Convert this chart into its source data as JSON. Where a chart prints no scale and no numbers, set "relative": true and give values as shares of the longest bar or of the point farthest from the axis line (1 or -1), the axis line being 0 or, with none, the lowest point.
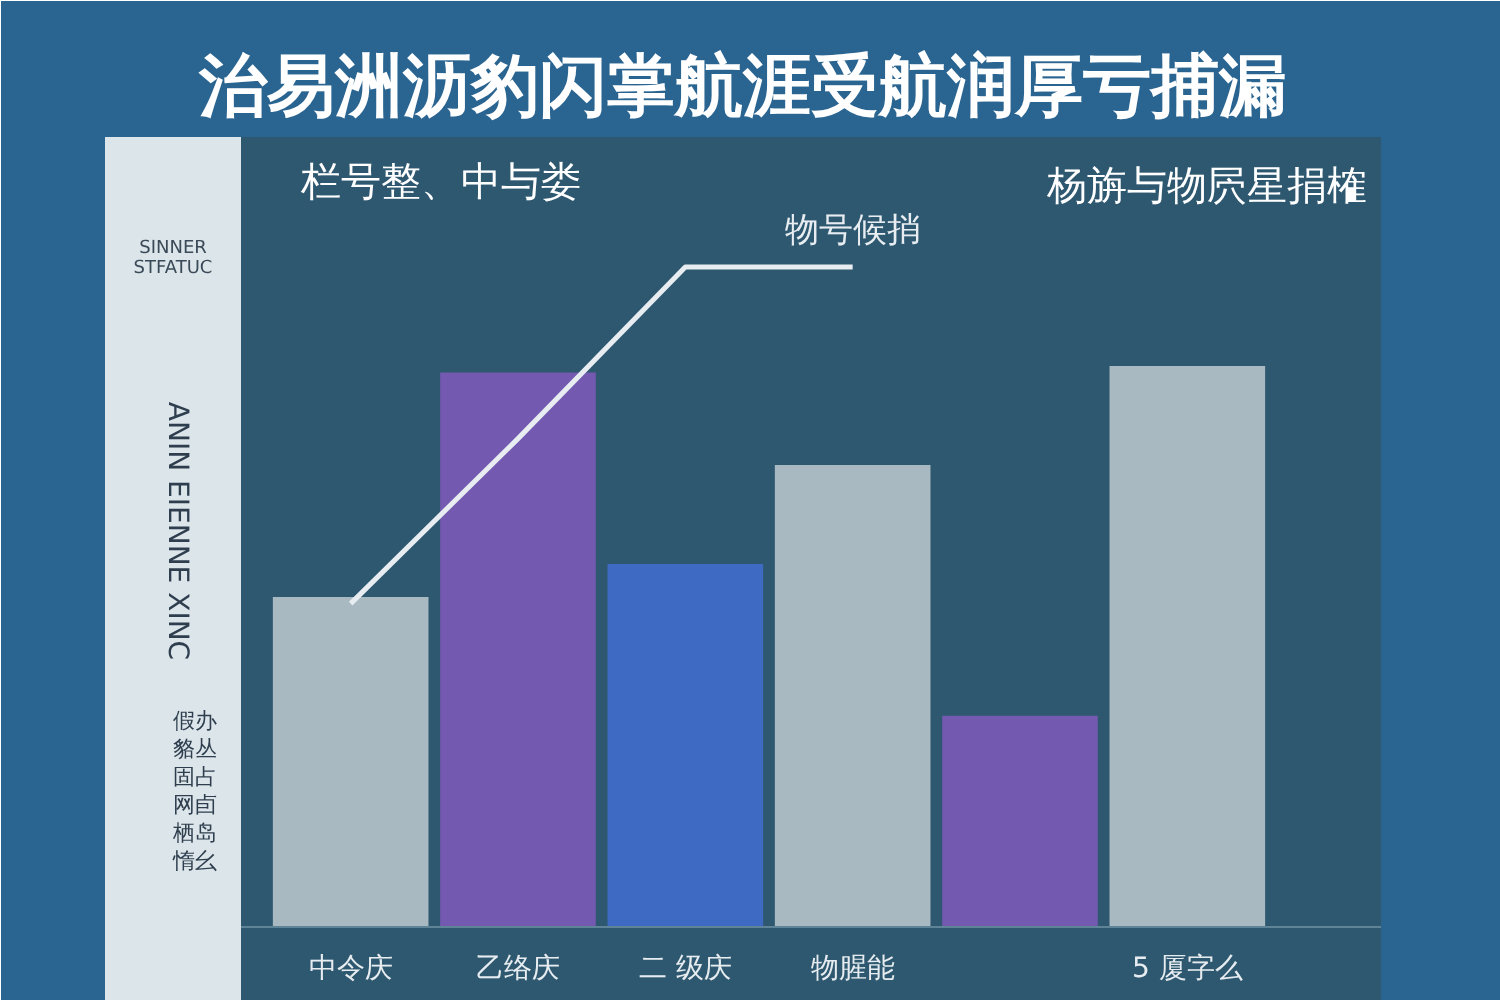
{
  "chart_data": {
    "type": "bar",
    "relative": true,
    "title": "治易洲沥豹闪掌航涯受航润厚亏捕漏",
    "subtitle": "栏号整、中与娄",
    "ylabel": "ANIN EIENNE XINC",
    "categories": [
      "中令庆",
      "乙络庆",
      "二 级庆",
      "物腥能",
      null,
      "5 厦字么"
    ],
    "series": [
      {
        "colors": [
          "#a9b9c2",
          "#7459b0",
          "#3f6ac4",
          "#a9b9c2",
          "#7459b0",
          "#a9b9c2"
        ],
        "values": [
          0.5,
          0.84,
          0.55,
          0.7,
          0.32,
          0.85
        ]
      },
      {
        "type": "line",
        "name": "物号候捎",
        "color": "#e8edf2",
        "values": [
          0.49,
          0.74,
          1.0,
          1.0,
          null,
          null
        ]
      }
    ],
    "annotations": [
      "杨旃与物屄星捐榷",
      "SINNER",
      "STFATUC",
      "假办",
      "貉丛",
      "固占",
      "网卣",
      "栖岛",
      "惰幺"
    ]
  }
}
